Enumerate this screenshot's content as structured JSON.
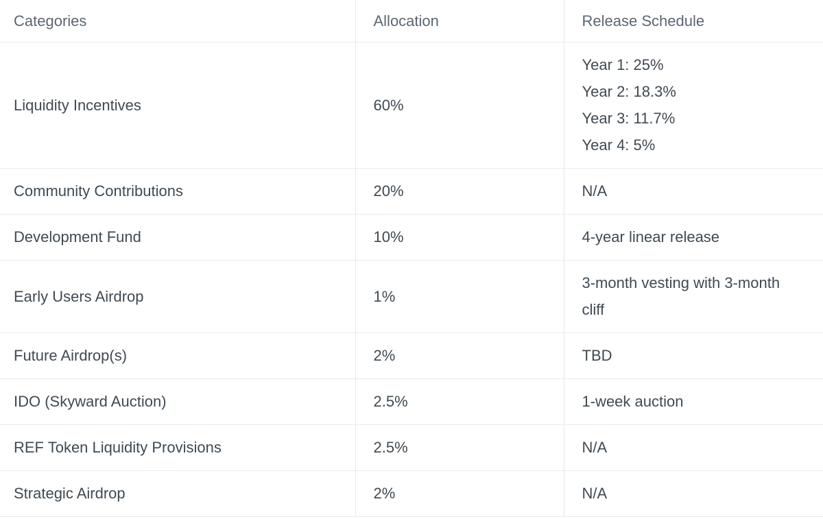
{
  "page": {
    "background": "#ffffff"
  },
  "table": {
    "headers": [
      {
        "id": "categories",
        "label": "Categories"
      },
      {
        "id": "allocation",
        "label": "Allocation"
      },
      {
        "id": "release_schedule",
        "label": "Release Schedule"
      }
    ],
    "rows": [
      {
        "category": "Liquidity Incentives",
        "allocation": "60%",
        "release": [
          "Year 1: 25%",
          "Year 2: 18.3%",
          "Year 3: 11.7%",
          "Year 4: 5%"
        ]
      },
      {
        "category": "Community Contributions",
        "allocation": "20%",
        "release": [
          "N/A"
        ]
      },
      {
        "category": "Development Fund",
        "allocation": "10%",
        "release": [
          "4-year linear release"
        ]
      },
      {
        "category": "Early Users Airdrop",
        "allocation": "1%",
        "release": [
          "3-month vesting with 3-month cliff"
        ]
      },
      {
        "category": "Future Airdrop(s)",
        "allocation": "2%",
        "release": [
          "TBD"
        ]
      },
      {
        "category": "IDO (Skyward Auction)",
        "allocation": "2.5%",
        "release": [
          "1-week auction"
        ]
      },
      {
        "category": "REF Token Liquidity Provisions",
        "allocation": "2.5%",
        "release": [
          "N/A"
        ]
      },
      {
        "category": "Strategic Airdrop",
        "allocation": "2%",
        "release": [
          "N/A"
        ]
      }
    ],
    "style": {
      "header_text_color": "#5b6774",
      "body_text_color": "#3e4a53",
      "row_border_color": "#e7ebef",
      "column_border_color": "#e2e7ed"
    }
  }
}
